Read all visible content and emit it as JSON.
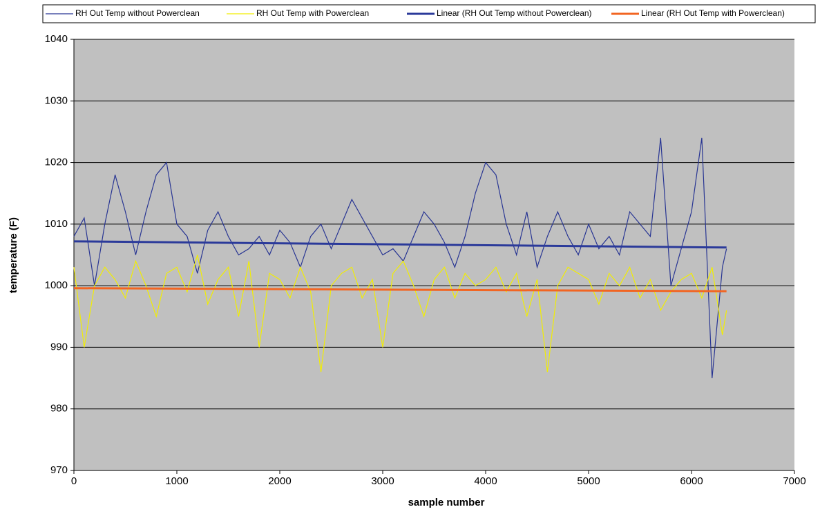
{
  "chart_data": {
    "type": "line",
    "x_label": "sample number",
    "y_label": "temperature (F)",
    "xlim": [
      0,
      7000
    ],
    "xticks": [
      0,
      1000,
      2000,
      3000,
      4000,
      5000,
      6000,
      7000
    ],
    "ylim": [
      970,
      1040
    ],
    "yticks": [
      970,
      980,
      990,
      1000,
      1010,
      1020,
      1030,
      1040
    ],
    "grid": true,
    "legend": "top",
    "x": [
      0,
      100,
      200,
      300,
      400,
      500,
      600,
      700,
      800,
      900,
      1000,
      1100,
      1200,
      1300,
      1400,
      1500,
      1600,
      1700,
      1800,
      1900,
      2000,
      2100,
      2200,
      2300,
      2400,
      2500,
      2600,
      2700,
      2800,
      2900,
      3000,
      3100,
      3200,
      3300,
      3400,
      3500,
      3600,
      3700,
      3800,
      3900,
      4000,
      4100,
      4200,
      4300,
      4400,
      4500,
      4600,
      4700,
      4800,
      4900,
      5000,
      5100,
      5200,
      5300,
      5400,
      5500,
      5600,
      5700,
      5800,
      5900,
      6000,
      6100,
      6200,
      6300,
      6340
    ],
    "series": [
      {
        "name": "RH Out Temp without Powerclean",
        "color": "#283593",
        "width": 1.2,
        "values": [
          1008,
          1011,
          1000,
          1010,
          1018,
          1012,
          1005,
          1012,
          1018,
          1020,
          1010,
          1008,
          1002,
          1009,
          1012,
          1008,
          1005,
          1006,
          1008,
          1005,
          1009,
          1007,
          1003,
          1008,
          1010,
          1006,
          1010,
          1014,
          1011,
          1008,
          1005,
          1006,
          1004,
          1008,
          1012,
          1010,
          1007,
          1003,
          1008,
          1015,
          1020,
          1018,
          1010,
          1005,
          1012,
          1003,
          1008,
          1012,
          1008,
          1005,
          1010,
          1006,
          1008,
          1005,
          1012,
          1010,
          1008,
          1024,
          1000,
          1006,
          1012,
          1024,
          985,
          1003,
          1006
        ]
      },
      {
        "name": "RH Out Temp with Powerclean",
        "color": "#f2ee00",
        "width": 1.2,
        "values": [
          1003,
          990,
          1000,
          1003,
          1001,
          998,
          1004,
          1000,
          995,
          1002,
          1003,
          999,
          1005,
          997,
          1001,
          1003,
          995,
          1004,
          990,
          1002,
          1001,
          998,
          1003,
          999,
          986,
          1000,
          1002,
          1003,
          998,
          1001,
          990,
          1002,
          1004,
          1000,
          995,
          1001,
          1003,
          998,
          1002,
          1000,
          1001,
          1003,
          999,
          1002,
          995,
          1001,
          986,
          1000,
          1003,
          1002,
          1001,
          997,
          1002,
          1000,
          1003,
          998,
          1001,
          996,
          999,
          1001,
          1002,
          998,
          1003,
          992,
          996
        ]
      },
      {
        "name": "Linear (RH Out Temp without Powerclean)",
        "color": "#2b3a9a",
        "width": 3,
        "x": [
          0,
          6340
        ],
        "values": [
          1007.2,
          1006.2
        ]
      },
      {
        "name": "Linear (RH Out Temp with Powerclean)",
        "color": "#f26522",
        "width": 3,
        "x": [
          0,
          6340
        ],
        "values": [
          999.6,
          999.1
        ]
      }
    ]
  }
}
